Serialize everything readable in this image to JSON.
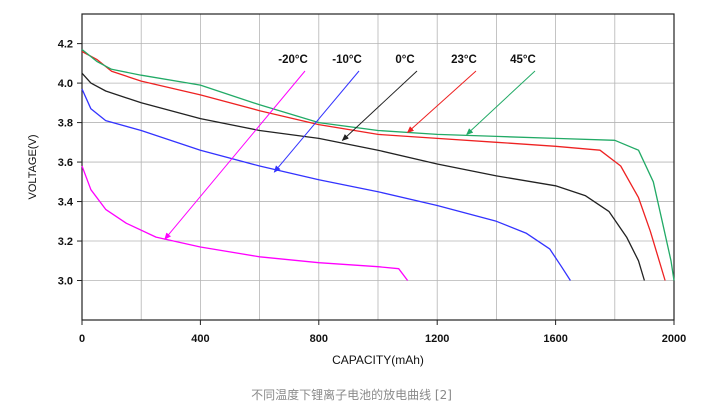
{
  "chart_data": {
    "type": "line",
    "title": "",
    "xlabel": "CAPACITY(mAh)",
    "ylabel": "VOLTAGE(V)",
    "xlim": [
      0,
      2000
    ],
    "ylim": [
      2.8,
      4.35
    ],
    "x_ticks": [
      0,
      400,
      800,
      1200,
      1600,
      2000
    ],
    "y_ticks": [
      3.0,
      3.2,
      3.4,
      3.6,
      3.8,
      4.0,
      4.2
    ],
    "grid": true,
    "series": [
      {
        "name": "-20°C",
        "color": "#ff00ff",
        "points": [
          [
            0,
            3.58
          ],
          [
            30,
            3.46
          ],
          [
            80,
            3.36
          ],
          [
            150,
            3.29
          ],
          [
            250,
            3.22
          ],
          [
            400,
            3.17
          ],
          [
            600,
            3.12
          ],
          [
            800,
            3.09
          ],
          [
            1000,
            3.07
          ],
          [
            1070,
            3.06
          ],
          [
            1100,
            3.0
          ]
        ]
      },
      {
        "name": "-10°C",
        "color": "#3333ff",
        "points": [
          [
            0,
            3.97
          ],
          [
            30,
            3.87
          ],
          [
            80,
            3.81
          ],
          [
            200,
            3.76
          ],
          [
            400,
            3.66
          ],
          [
            600,
            3.58
          ],
          [
            800,
            3.51
          ],
          [
            1000,
            3.45
          ],
          [
            1200,
            3.38
          ],
          [
            1400,
            3.3
          ],
          [
            1500,
            3.24
          ],
          [
            1580,
            3.16
          ],
          [
            1620,
            3.07
          ],
          [
            1650,
            3.0
          ]
        ]
      },
      {
        "name": "0°C",
        "color": "#222222",
        "points": [
          [
            0,
            4.05
          ],
          [
            30,
            4.0
          ],
          [
            80,
            3.96
          ],
          [
            200,
            3.9
          ],
          [
            400,
            3.82
          ],
          [
            600,
            3.76
          ],
          [
            800,
            3.72
          ],
          [
            1000,
            3.66
          ],
          [
            1200,
            3.59
          ],
          [
            1400,
            3.53
          ],
          [
            1600,
            3.48
          ],
          [
            1700,
            3.43
          ],
          [
            1780,
            3.35
          ],
          [
            1840,
            3.22
          ],
          [
            1880,
            3.1
          ],
          [
            1900,
            3.0
          ]
        ]
      },
      {
        "name": "23°C",
        "color": "#ee2222",
        "points": [
          [
            0,
            4.16
          ],
          [
            50,
            4.12
          ],
          [
            100,
            4.06
          ],
          [
            200,
            4.01
          ],
          [
            400,
            3.94
          ],
          [
            600,
            3.86
          ],
          [
            800,
            3.79
          ],
          [
            1000,
            3.74
          ],
          [
            1200,
            3.72
          ],
          [
            1400,
            3.7
          ],
          [
            1600,
            3.68
          ],
          [
            1750,
            3.66
          ],
          [
            1820,
            3.58
          ],
          [
            1880,
            3.42
          ],
          [
            1920,
            3.25
          ],
          [
            1950,
            3.1
          ],
          [
            1970,
            3.0
          ]
        ]
      },
      {
        "name": "45°C",
        "color": "#22aa66",
        "points": [
          [
            0,
            4.17
          ],
          [
            50,
            4.11
          ],
          [
            100,
            4.07
          ],
          [
            200,
            4.04
          ],
          [
            400,
            3.99
          ],
          [
            600,
            3.89
          ],
          [
            800,
            3.8
          ],
          [
            1000,
            3.76
          ],
          [
            1200,
            3.74
          ],
          [
            1400,
            3.73
          ],
          [
            1600,
            3.72
          ],
          [
            1800,
            3.71
          ],
          [
            1880,
            3.66
          ],
          [
            1930,
            3.5
          ],
          [
            1960,
            3.3
          ],
          [
            1990,
            3.1
          ],
          [
            2000,
            3.0
          ]
        ]
      }
    ],
    "annotations": [
      {
        "label": "-20°C",
        "points_at": [
          280,
          3.21
        ]
      },
      {
        "label": "-10°C",
        "points_at": [
          650,
          3.55
        ]
      },
      {
        "label": "0°C",
        "points_at": [
          880,
          3.71
        ]
      },
      {
        "label": "23°C",
        "points_at": [
          1100,
          3.75
        ]
      },
      {
        "label": "45°C",
        "points_at": [
          1300,
          3.74
        ]
      }
    ]
  },
  "caption": "不同温度下锂离子电池的放电曲线 [2]"
}
